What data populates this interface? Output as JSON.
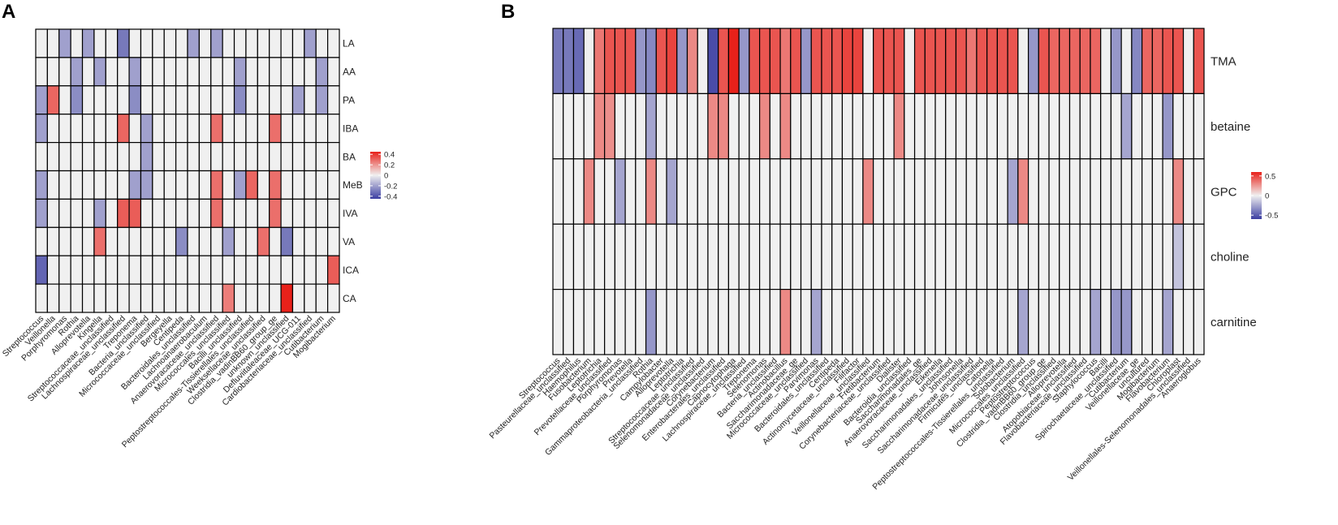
{
  "figure": {
    "panel_labels": [
      "A",
      "B"
    ]
  },
  "colors": {
    "negative": "#3b3da1",
    "neutral": "#f0f0f0",
    "positive": "#e8211a",
    "grid": "#000000"
  },
  "chart_data": [
    {
      "type": "heatmap",
      "panel": "A",
      "columns": [
        "Streptococcus",
        "Veillonella",
        "Porphyromonas",
        "Rothia",
        "Alloprevotella",
        "Kingella",
        "Streptococcaceae_unclassified",
        "Lachnospiraceae_unclassified",
        "Treponema",
        "Bacteria_unclassified",
        "Micrococcaceae_unclassified",
        "Bergeyella",
        "Centipeda",
        "Bacteroidales_unclassified",
        "Lachnoanaerobaculum",
        "Anaerovoracaceae_unclassified",
        "Micrococcales_unclassified",
        "Bacilli_unclassified",
        "Peptostreptococcales-Tissierellales_unclassified",
        "Weeksellaceae_unclassified",
        "Clostridia_vadinBB60_group_ge",
        "unknown_unclassified",
        "Defluviitaleaceae_UCG-011",
        "Cardiobacteriaceae_unclassified",
        "Cutibacterium",
        "Mogibacterium"
      ],
      "rows": [
        "LA",
        "AA",
        "PA",
        "IBA",
        "BA",
        "MeB",
        "IVA",
        "VA",
        "ICA",
        "CA"
      ],
      "values": [
        [
          0,
          0,
          -0.2,
          0,
          -0.2,
          0,
          0,
          -0.3,
          0,
          0,
          0,
          0,
          0,
          -0.2,
          0,
          -0.2,
          0,
          0,
          0,
          0,
          0,
          0,
          0,
          -0.2,
          0,
          0
        ],
        [
          0,
          0,
          0,
          -0.2,
          0,
          -0.2,
          0,
          0,
          -0.2,
          0,
          0,
          0,
          0,
          0,
          0,
          0,
          0,
          -0.2,
          0,
          0,
          0,
          0,
          0,
          0,
          -0.2,
          0
        ],
        [
          -0.2,
          0.3,
          0,
          -0.25,
          0,
          0,
          0,
          0,
          -0.25,
          0,
          0,
          0,
          0,
          0,
          0,
          0,
          0,
          -0.25,
          0,
          0,
          0,
          0,
          -0.2,
          0,
          -0.2,
          0
        ],
        [
          -0.2,
          0,
          0,
          0,
          0,
          0,
          0,
          0.3,
          0,
          -0.2,
          0,
          0,
          0,
          0,
          0,
          0.28,
          0,
          0,
          0,
          0,
          0.28,
          0,
          0,
          0,
          0,
          0
        ],
        [
          0,
          0,
          0,
          0,
          0,
          0,
          0,
          0,
          0,
          -0.2,
          0,
          0,
          0,
          0,
          0,
          0,
          0,
          0,
          0,
          0,
          0,
          0,
          0,
          0,
          0,
          0
        ],
        [
          -0.2,
          0,
          0,
          0,
          0,
          0,
          0,
          0,
          -0.2,
          -0.2,
          0,
          0,
          0,
          0,
          0,
          0.28,
          0,
          -0.2,
          0.3,
          0,
          0.28,
          0,
          0,
          0,
          0,
          0
        ],
        [
          -0.2,
          0,
          0,
          0,
          0,
          -0.2,
          0,
          0.32,
          0.32,
          0,
          0,
          0,
          0,
          0,
          0,
          0.28,
          0,
          0,
          0,
          0,
          0.28,
          0,
          0,
          0,
          0,
          0
        ],
        [
          0,
          0,
          0,
          0,
          0,
          0.28,
          0,
          0,
          0,
          0,
          0,
          0,
          -0.25,
          0,
          0,
          0,
          -0.2,
          0,
          0,
          0.28,
          0,
          -0.3,
          0,
          0,
          0,
          0
        ],
        [
          -0.35,
          0,
          0,
          0,
          0,
          0,
          0,
          0,
          0,
          0,
          0,
          0,
          0,
          0,
          0,
          0,
          0,
          0,
          0,
          0,
          0,
          0,
          0,
          0,
          0,
          0.32
        ],
        [
          0,
          0,
          0,
          0,
          0,
          0,
          0,
          0,
          0,
          0,
          0,
          0,
          0,
          0,
          0,
          0,
          0.25,
          0,
          0,
          0,
          0,
          0.45,
          0,
          0,
          0,
          0
        ]
      ],
      "legend": {
        "ticks": [
          0.4,
          0.2,
          0,
          -0.2,
          -0.4
        ],
        "tick_labels": [
          "0.4",
          "0.2",
          "0",
          "-0.2",
          "-0.4"
        ],
        "range": [
          -0.45,
          0.45
        ]
      }
    },
    {
      "type": "heatmap",
      "panel": "B",
      "columns": [
        "Streptococcus",
        "Pasteurellaceae_unclassified",
        "Haemophilus",
        "Fusobacterium",
        "Leptotrichia",
        "Prevotellaceae_unclassified",
        "Porphyromonas",
        "Prevotella",
        "Gammaproteobacteria_unclassified",
        "Rothia",
        "Campylobacter",
        "Alloprevotella",
        "Leptotrichia",
        "Streptococcaceae_unclassified",
        "Selenomonadaceae_unclassified",
        "Corynebacterium",
        "Enterobacterales_unclassified",
        "Capnocytophaga",
        "Lachnospiraceae_unclassified",
        "Treponema",
        "Selenomonas",
        "Bacteria_unclassified",
        "Actinobacillus",
        "Saccharimonadaceae_ge",
        "Micrococcaceae_unclassified",
        "Parvimonas",
        "Bacteroidales_unclassified",
        "Centipeda",
        "Actinomycetaceae_unclassified",
        "Filifactor",
        "Veillonellaceae_unclassified",
        "Fretibacterium",
        "Corynebacteriaceae_unclassified",
        "Dialister",
        "Bacteroidia_unclassified",
        "Saccharimonadales_ge",
        "Anaerovoracaceae_unclassified",
        "Eikenella",
        "Saccharimonadales_unclassified",
        "Johnsonella",
        "Saccharimonadaceae_unclassified",
        "Firmicutes_unclassified",
        "Catonella",
        "Peptostreptococcales-Tissierellales_unclassified",
        "Solobacterium",
        "Micrococcales_unclassified",
        "Peptostreptococcus",
        "Clostridia_vadinBB60_group_ge",
        "Clostridia_unclassified",
        "Alloprevotella",
        "Atopobiaceae_unclassified",
        "Flavobacteriaceae_unclassified",
        "Staphylococcus",
        "Bacilli",
        "Spirochaetaceae_unclassified",
        "Cutibacterium",
        "Veillonellaceae_ge",
        "uncultured",
        "Mogibacterium",
        "Flavobacterium",
        "Chloroplast",
        "Veillonellales-Selenomonadales_unclassified",
        "Anaeroglobus"
      ],
      "rows": [
        "TMA",
        "betaine",
        "GPC",
        "choline",
        "carnitine"
      ],
      "values": [
        [
          -0.4,
          -0.4,
          -0.45,
          0,
          0.35,
          0.45,
          0.45,
          0.45,
          -0.3,
          -0.35,
          0.45,
          0.5,
          -0.3,
          0.3,
          0,
          -0.55,
          0.45,
          0.6,
          -0.3,
          0.45,
          0.45,
          0.45,
          0.35,
          0.45,
          -0.3,
          0.45,
          0.45,
          0.45,
          0.5,
          0.5,
          0,
          0.45,
          0.45,
          0.45,
          0,
          0.45,
          0.45,
          0.45,
          0.45,
          0.45,
          0.35,
          0.45,
          0.45,
          0.45,
          0.45,
          0,
          -0.3,
          0.45,
          0.4,
          0.4,
          0.4,
          0.4,
          0.4,
          0,
          -0.3,
          0,
          -0.35,
          0.4,
          0.4,
          0.45,
          0.45,
          0,
          0.45
        ],
        [
          0,
          0,
          0,
          0,
          0.3,
          0.28,
          0,
          0,
          0,
          -0.25,
          0,
          0,
          0,
          0,
          0,
          0.3,
          0.3,
          0,
          0,
          0,
          0.3,
          0,
          0.3,
          0,
          0,
          0,
          0,
          0,
          0,
          0,
          0,
          0,
          0,
          0.3,
          0,
          0,
          0,
          0,
          0,
          0,
          0,
          0,
          0,
          0,
          0,
          0,
          0,
          0,
          0,
          0,
          0,
          0,
          0,
          0,
          0,
          -0.25,
          0,
          0,
          0,
          -0.3,
          0,
          0,
          0
        ],
        [
          0,
          0,
          0,
          0.3,
          0,
          0,
          -0.25,
          0,
          0,
          0.3,
          0,
          -0.25,
          0,
          0,
          0,
          0,
          0,
          0,
          0,
          0,
          0,
          0,
          0,
          0,
          0,
          0,
          0,
          0,
          0,
          0,
          0.3,
          0,
          0,
          0,
          0,
          0,
          0,
          0,
          0,
          0,
          0,
          0,
          0,
          0,
          -0.25,
          0.3,
          0,
          0,
          0,
          0,
          0,
          0,
          0,
          0,
          0,
          0,
          0,
          0,
          0,
          0,
          0.3,
          0,
          0
        ],
        [
          0,
          0,
          0,
          0,
          0,
          0,
          0,
          0,
          0,
          0,
          0,
          0,
          0,
          0,
          0,
          0,
          0,
          0,
          0,
          0,
          0,
          0,
          0,
          0,
          0,
          0,
          0,
          0,
          0,
          0,
          0,
          0,
          0,
          0,
          0,
          0,
          0,
          0,
          0,
          0,
          0,
          0,
          0,
          0,
          0,
          0,
          0,
          0,
          0,
          0,
          0,
          0,
          0,
          0,
          0,
          0,
          0,
          0,
          0,
          0,
          -0.15,
          0,
          0
        ],
        [
          0,
          0,
          0,
          0,
          0,
          0,
          0,
          0,
          0,
          -0.3,
          0,
          0,
          0,
          0,
          0,
          0,
          0,
          0,
          0,
          0,
          0,
          0,
          0.3,
          0,
          0,
          -0.25,
          0,
          0,
          0,
          0,
          0,
          0,
          0,
          0,
          0,
          0,
          0,
          0,
          0,
          0,
          0,
          0,
          0,
          0,
          0,
          -0.25,
          0,
          0,
          0,
          0,
          0,
          0,
          -0.25,
          0,
          -0.3,
          -0.3,
          0,
          0,
          0,
          -0.25,
          0,
          0,
          0
        ]
      ],
      "legend": {
        "ticks": [
          0.5,
          0,
          -0.5
        ],
        "tick_labels": [
          "0.5",
          "0",
          "-0.5"
        ],
        "range": [
          -0.6,
          0.6
        ]
      }
    }
  ]
}
